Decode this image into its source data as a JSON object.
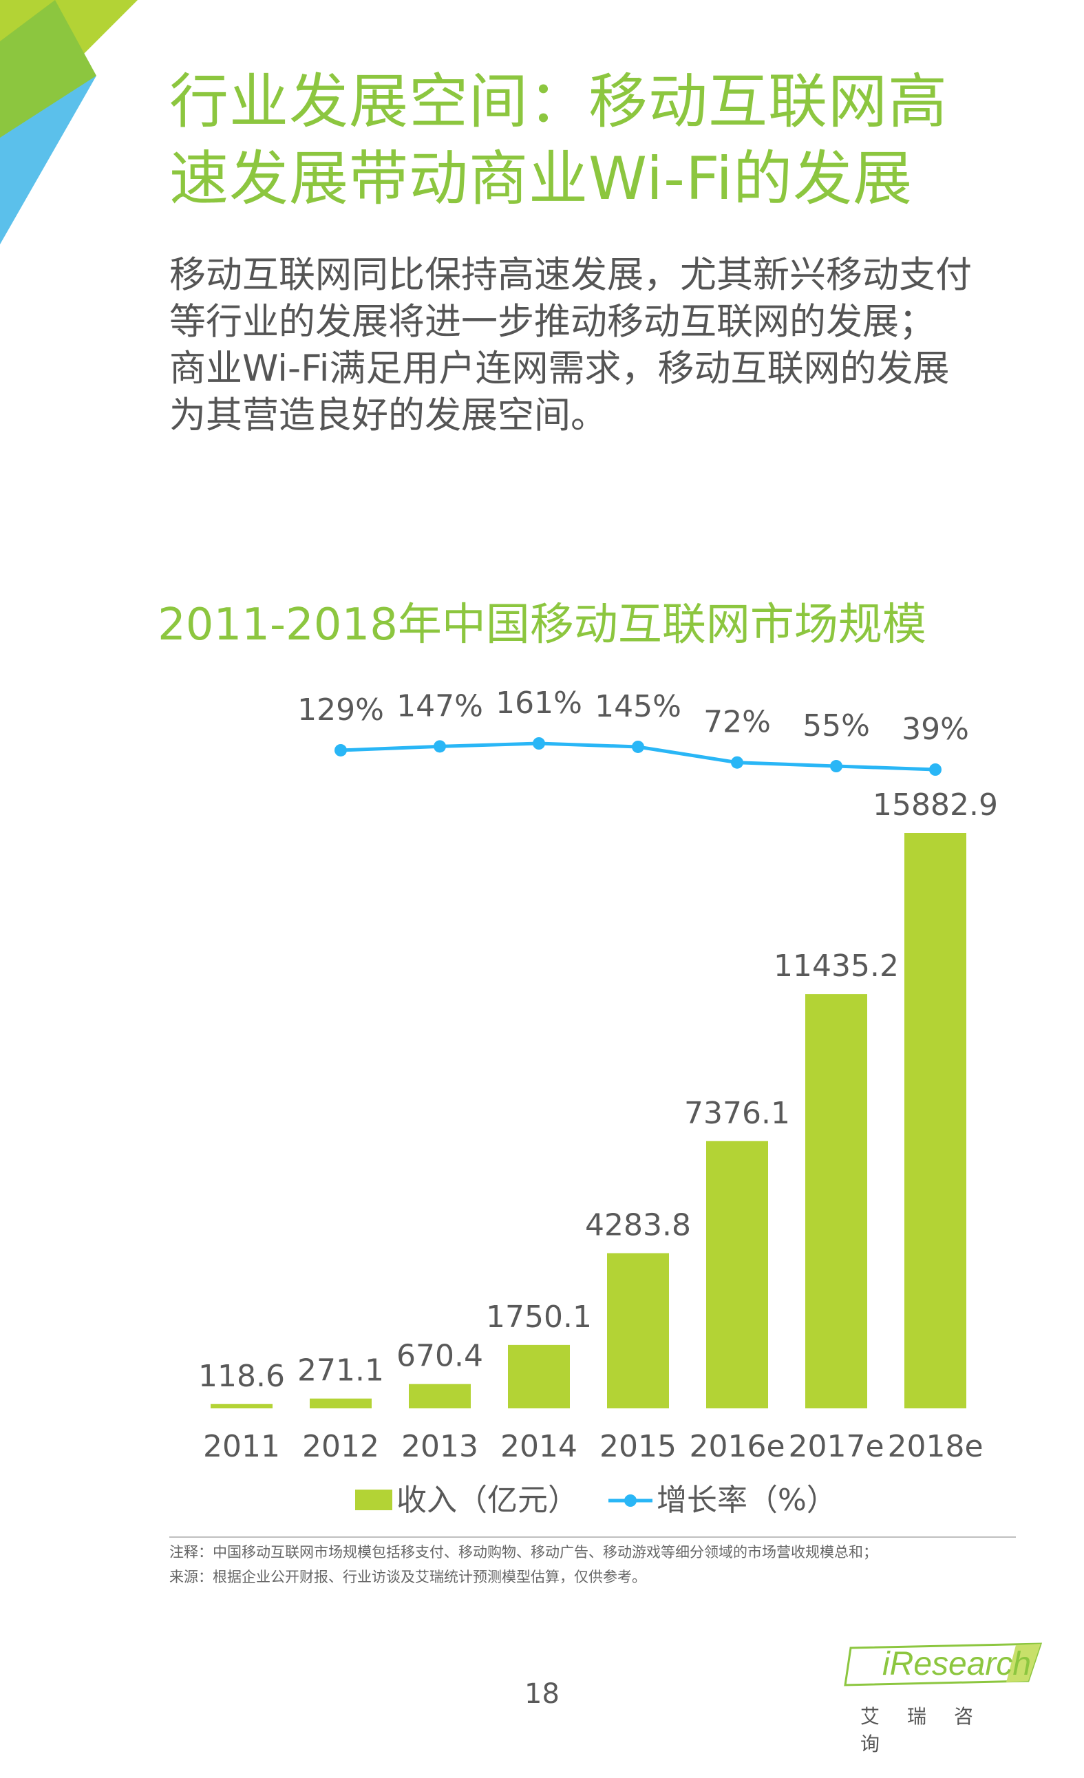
{
  "header": {
    "title_line1": "行业发展空间：移动互联网高",
    "title_line2": "速发展带动商业Wi-Fi的发展"
  },
  "summary": {
    "line1": "移动互联网同比保持高速发展，尤其新兴移动支付",
    "line2": "等行业的发展将进一步推动移动互联网的发展；",
    "line3": "商业Wi-Fi满足用户连网需求，移动互联网的发展",
    "line4": "为其营造良好的发展空间。"
  },
  "colors": {
    "accent": "#8cc63f",
    "bar": "#b3d335",
    "line": "#29b6f6",
    "text": "#595959"
  },
  "chart_data": {
    "type": "bar",
    "title": "2011-2018年中国移动互联网市场规模",
    "categories": [
      "2011",
      "2012",
      "2013",
      "2014",
      "2015",
      "2016e",
      "2017e",
      "2018e"
    ],
    "series": [
      {
        "name": "收入（亿元）",
        "type": "bar",
        "values": [
          118.6,
          271.1,
          670.4,
          1750.1,
          4283.8,
          7376.1,
          11435.2,
          15882.9
        ],
        "labels": [
          "118.6",
          "271.1",
          "670.4",
          "1750.1",
          "4283.8",
          "7376.1",
          "11435.2",
          "15882.9"
        ]
      },
      {
        "name": "增长率（%）",
        "type": "line",
        "values": [
          129,
          147,
          161,
          145,
          72,
          55,
          39
        ],
        "x": [
          "2012",
          "2013",
          "2014",
          "2015",
          "2016e",
          "2017e",
          "2018e"
        ],
        "labels": [
          "129%",
          "147%",
          "161%",
          "145%",
          "72%",
          "55%",
          "39%"
        ]
      }
    ],
    "legend": [
      "收入（亿元）",
      "增长率（%）"
    ],
    "legend_position": "bottom",
    "grid": false
  },
  "footer": {
    "note": "注释：中国移动互联网市场规模包括移支付、移动购物、移动广告、移动游戏等细分领域的市场营收规模总和；",
    "source": "来源：根据企业公开财报、行业访谈及艾瑞统计预测模型估算，仅供参考。",
    "page_number": "18",
    "logo_text": "iResearch",
    "logo_cn": "艾瑞咨询"
  }
}
